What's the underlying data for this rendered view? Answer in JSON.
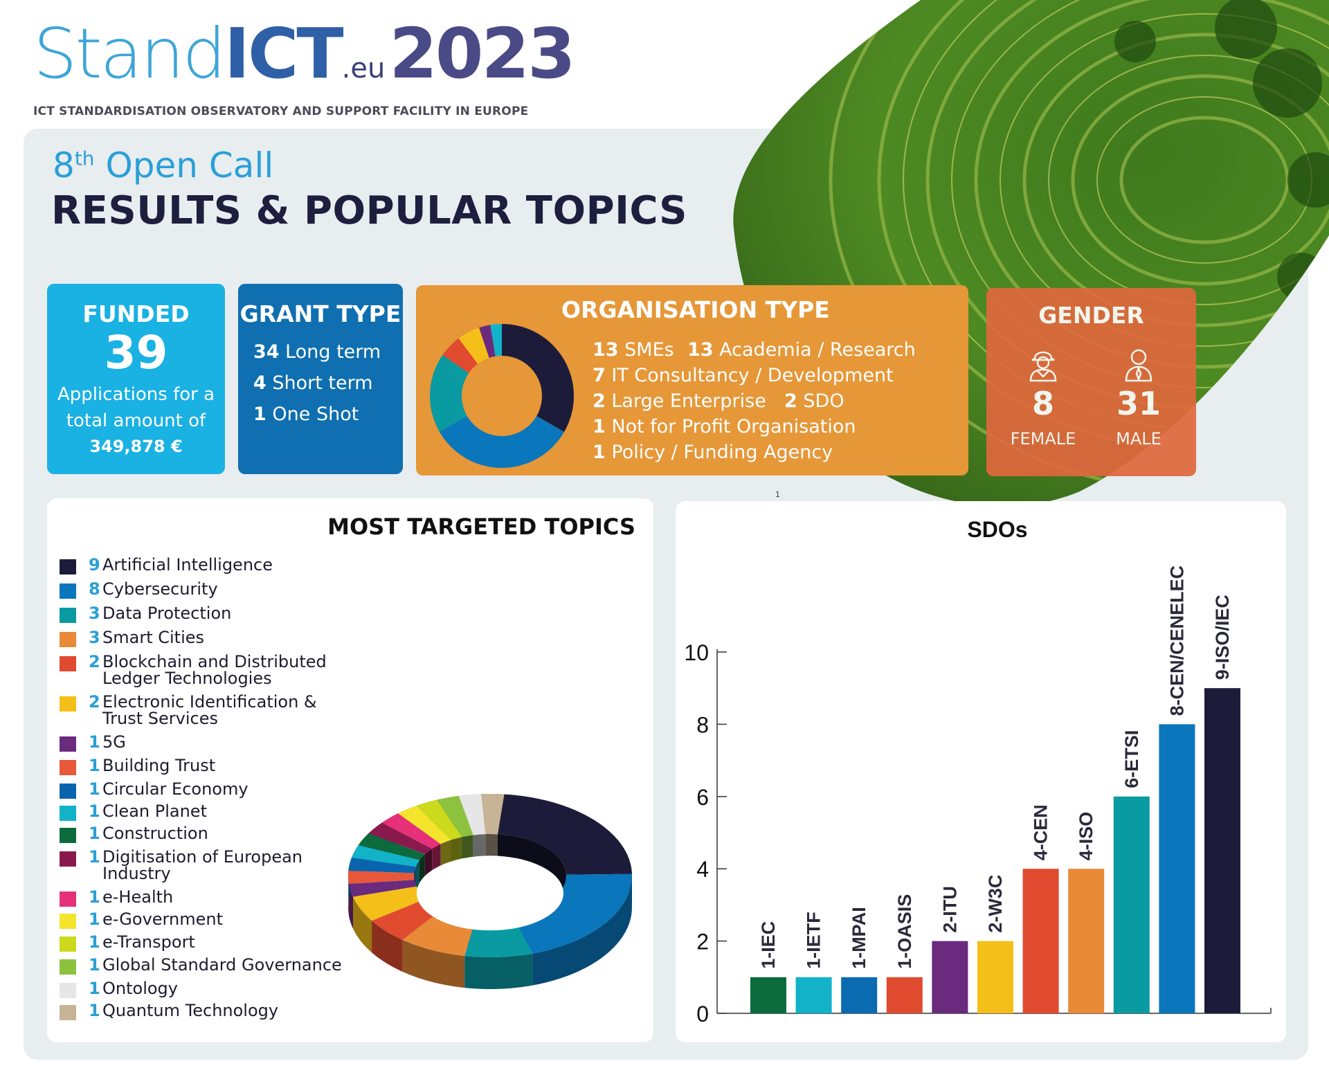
{
  "header": {
    "logo_stand": "Stand",
    "logo_ict": "ICT",
    "logo_eu": ".eu",
    "logo_year": "2023",
    "tagline": "ICT STANDARDISATION OBSERVATORY AND SUPPORT FACILITY IN EUROPE"
  },
  "title": {
    "call_number": "8",
    "call_suffix": "th",
    "call_text": "Open Call",
    "main": "RESULTS & POPULAR TOPICS"
  },
  "funded": {
    "heading": "FUNDED",
    "count": "39",
    "line1": "Applications for a",
    "line2": "total amount of",
    "amount": "349,878 €"
  },
  "grant_type": {
    "heading": "GRANT TYPE",
    "rows": [
      {
        "num": "34",
        "label": "Long term"
      },
      {
        "num": "4",
        "label": "Short term"
      },
      {
        "num": "1",
        "label": "One Shot"
      }
    ]
  },
  "organisation_type": {
    "heading": "ORGANISATION TYPE",
    "rows": [
      {
        "num": "13",
        "label": "SMEs"
      },
      {
        "num": "13",
        "label": "Academia / Research"
      },
      {
        "num": "7",
        "label": "IT Consultancy / Development"
      },
      {
        "num": "2",
        "label": "Large Enterprise"
      },
      {
        "num": "2",
        "label": "SDO"
      },
      {
        "num": "1",
        "label": "Not for Profit Organisation"
      },
      {
        "num": "1",
        "label": "Policy / Funding Agency"
      }
    ]
  },
  "gender": {
    "heading": "GENDER",
    "female_count": "8",
    "female_label": "FEMALE",
    "male_count": "31",
    "male_label": "MALE"
  },
  "page_marker": "1",
  "topics_title": "MOST TARGETED TOPICS",
  "sdo_title": "SDOs",
  "colors": {
    "navy": "#1c1c3a",
    "blue": "#0a76bb",
    "teal": "#0a9aa1",
    "orange": "#e88a37",
    "red": "#e04b2f",
    "yellow": "#f5bf1a",
    "purple": "#6a2a7d",
    "cyan": "#12b2c9",
    "green": "#0c6b3c",
    "maroon": "#8a1a4e",
    "pink": "#e6317a",
    "lemon": "#f4e42c",
    "lime": "#cdd91c",
    "grass": "#8cc23e",
    "lightgrey": "#e6e6e6",
    "beige": "#c7b496"
  },
  "chart_data": [
    {
      "type": "pie",
      "name": "organisation-type-donut",
      "categories": [
        "SMEs",
        "Academia / Research",
        "IT Consultancy / Development",
        "Large Enterprise",
        "SDO",
        "Not for Profit Organisation",
        "Policy / Funding Agency"
      ],
      "values": [
        13,
        13,
        7,
        2,
        2,
        1,
        1
      ],
      "colors": [
        "#1c1c3a",
        "#0a76bb",
        "#0a9aa1",
        "#e04b2f",
        "#f5bf1a",
        "#6a2a7d",
        "#12b2c9"
      ]
    },
    {
      "type": "pie",
      "name": "most-targeted-topics-donut",
      "title": "MOST TARGETED TOPICS",
      "categories": [
        "Artificial Intelligence",
        "Cybersecurity",
        "Data Protection",
        "Smart Cities",
        "Blockchain and Distributed Ledger Technologies",
        "Electronic Identification & Trust Services",
        "5G",
        "Building Trust",
        "Circular Economy",
        "Clean Planet",
        "Construction",
        "Digitisation of European Industry",
        "e-Health",
        "e-Government",
        "e-Transport",
        "Global Standard Governance",
        "Ontology",
        "Quantum Technology"
      ],
      "legend_labels": [
        [
          "Artificial Intelligence"
        ],
        [
          "Cybersecurity"
        ],
        [
          "Data Protection"
        ],
        [
          "Smart Cities"
        ],
        [
          "Blockchain and Distributed",
          "Ledger Technologies"
        ],
        [
          "Electronic Identification &",
          "Trust Services"
        ],
        [
          "5G"
        ],
        [
          "Building Trust"
        ],
        [
          "Circular Economy"
        ],
        [
          "Clean Planet"
        ],
        [
          "Construction"
        ],
        [
          "Digitisation of European",
          "Industry"
        ],
        [
          "e-Health"
        ],
        [
          "e-Government"
        ],
        [
          "e-Transport"
        ],
        [
          "Global Standard Governance"
        ],
        [
          "Ontology"
        ],
        [
          "Quantum Technology"
        ]
      ],
      "values": [
        9,
        8,
        3,
        3,
        2,
        2,
        1,
        1,
        1,
        1,
        1,
        1,
        1,
        1,
        1,
        1,
        1,
        1
      ],
      "colors": [
        "#1c1c3a",
        "#0a76bb",
        "#0a9aa1",
        "#e88a37",
        "#e04b2f",
        "#f5bf1a",
        "#6a2a7d",
        "#e8583a",
        "#0a64ad",
        "#12b2c9",
        "#0c6b3c",
        "#8a1a4e",
        "#e6317a",
        "#f4e42c",
        "#cdd91c",
        "#8cc23e",
        "#e6e6e6",
        "#c7b496"
      ]
    },
    {
      "type": "bar",
      "name": "sdos-bar",
      "title": "SDOs",
      "categories": [
        "1-IEC",
        "1-IETF",
        "1-MPAI",
        "1-OASIS",
        "2-ITU",
        "2-W3C",
        "4-CEN",
        "4-ISO",
        "6-ETSI",
        "8-CEN/CENELEC",
        "9-ISO/IEC"
      ],
      "values": [
        1,
        1,
        1,
        1,
        2,
        2,
        4,
        4,
        6,
        8,
        9
      ],
      "colors": [
        "#0c6b3c",
        "#12b2c9",
        "#0a6bb0",
        "#e04b2f",
        "#6a2a7d",
        "#f5bf1a",
        "#e04b2f",
        "#e88a37",
        "#0a9aa1",
        "#0a76bb",
        "#1c1c3a"
      ],
      "ylim": [
        0,
        10
      ],
      "yticks": [
        0,
        2,
        4,
        6,
        8,
        10
      ],
      "grid": false
    }
  ]
}
